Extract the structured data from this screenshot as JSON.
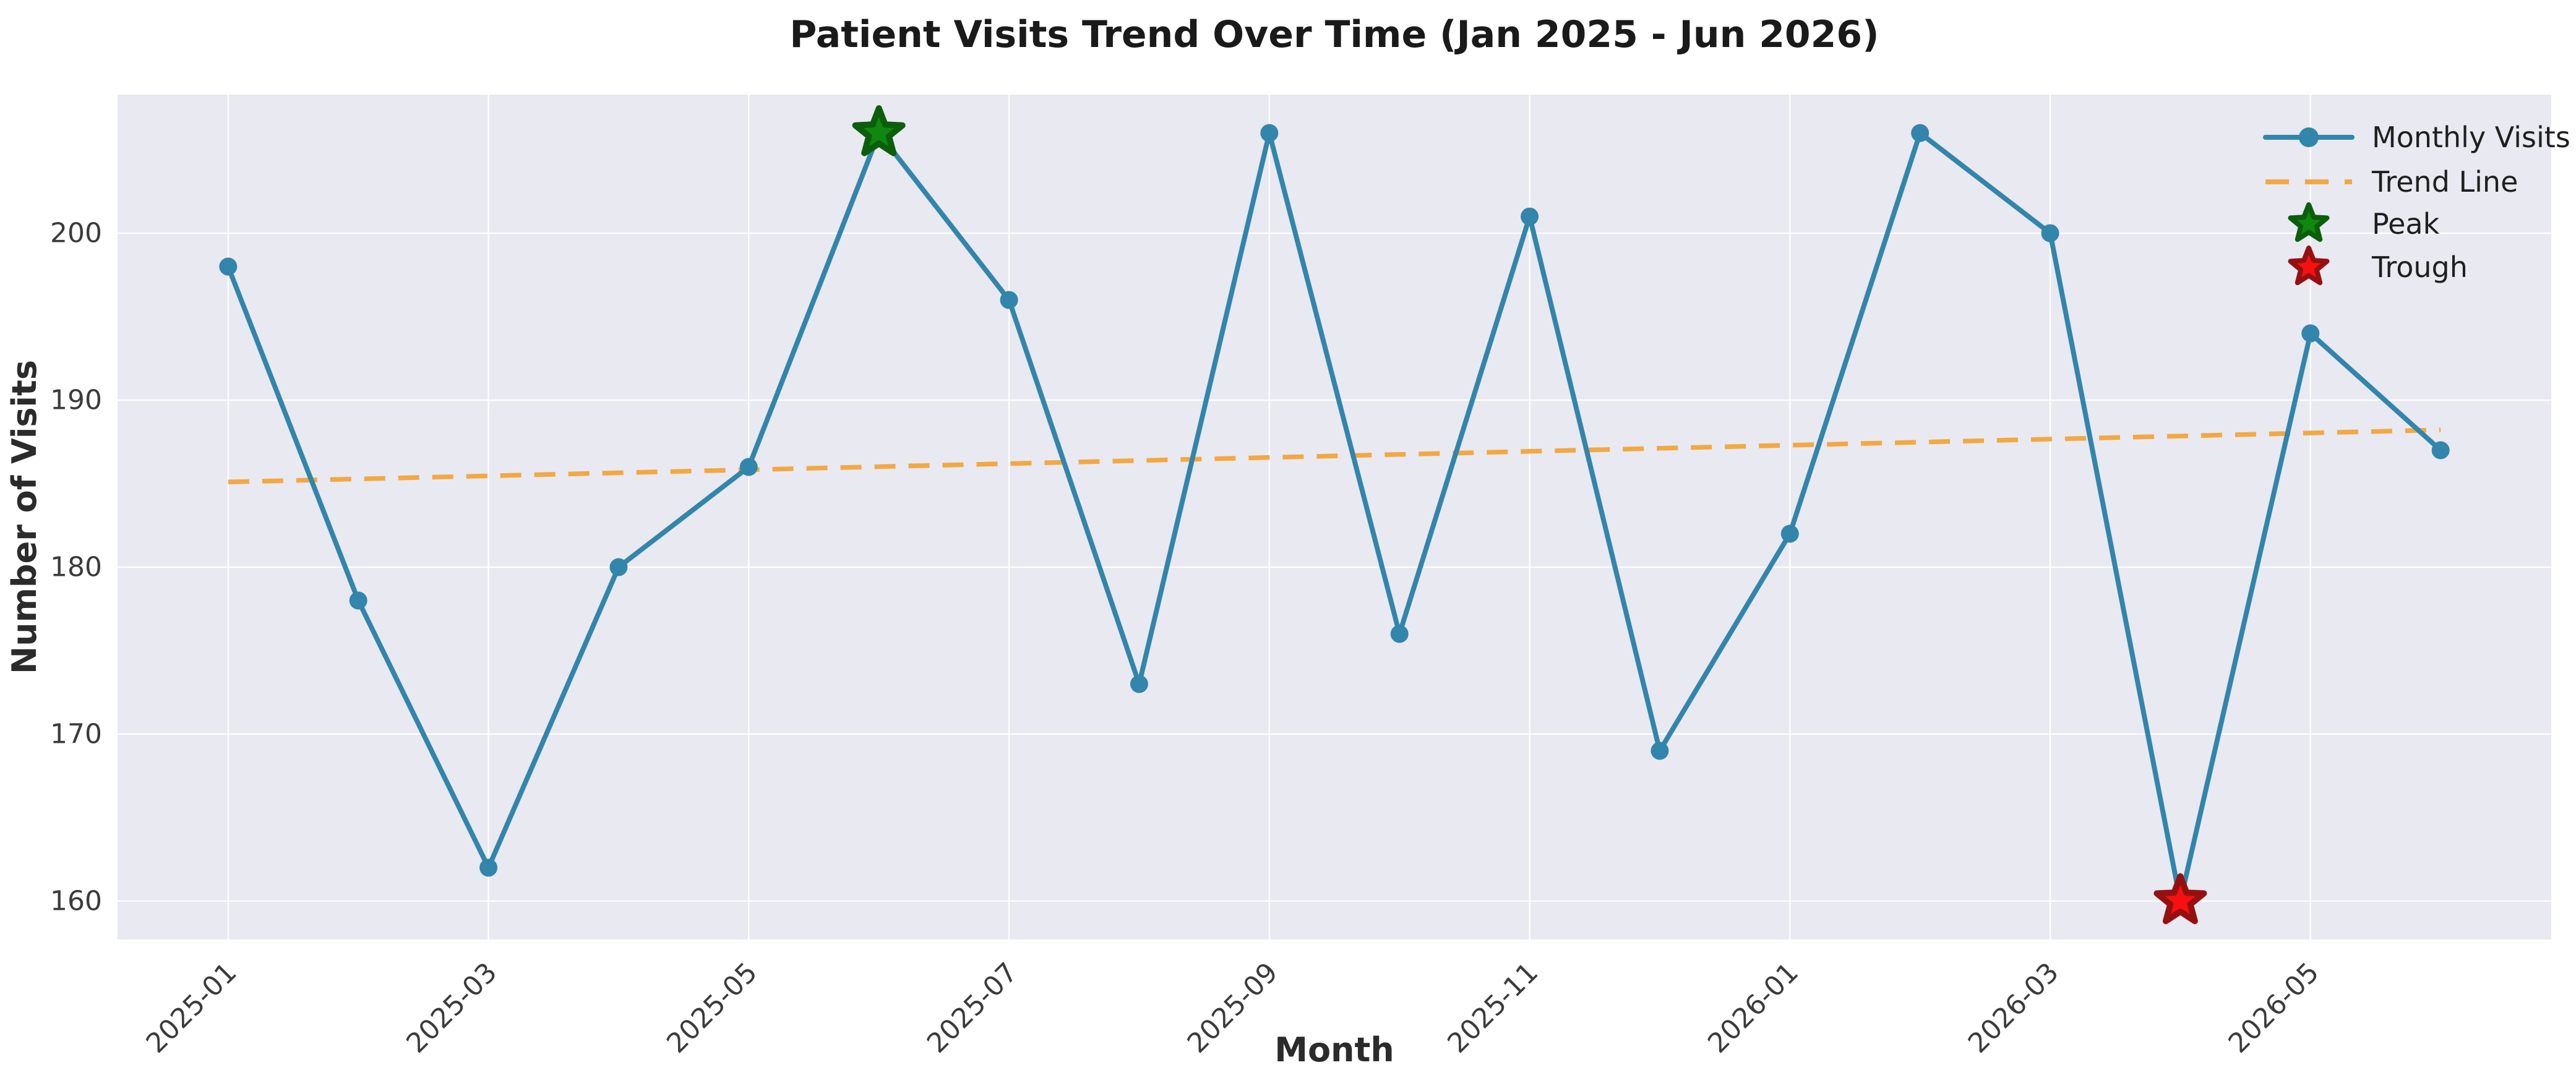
{
  "title": "Patient Visits Trend Over Time (Jan 2025 - Jun 2026)",
  "chart_data": {
    "type": "line",
    "title": "Patient Visits Trend Over Time (Jan 2025 - Jun 2026)",
    "xlabel": "Month",
    "ylabel": "Number of Visits",
    "x": [
      "2025-01",
      "2025-02",
      "2025-03",
      "2025-04",
      "2025-05",
      "2025-06",
      "2025-07",
      "2025-08",
      "2025-09",
      "2025-10",
      "2025-11",
      "2025-12",
      "2026-01",
      "2026-02",
      "2026-03",
      "2026-04",
      "2026-05",
      "2026-06"
    ],
    "series": [
      {
        "name": "Monthly Visits",
        "values": [
          198,
          178,
          162,
          180,
          186,
          206,
          196,
          173,
          206,
          176,
          201,
          169,
          182,
          206,
          200,
          160,
          194,
          187
        ]
      }
    ],
    "trend_line": {
      "name": "Trend Line",
      "intercept": 185.1,
      "slope": 0.1835,
      "start_value": 185.1,
      "end_value": 188.2
    },
    "annotations": [
      {
        "type": "peak",
        "label": "Peak",
        "month": "2025-06",
        "index": 5,
        "value": 206
      },
      {
        "type": "trough",
        "label": "Trough",
        "month": "2026-04",
        "index": 15,
        "value": 160
      }
    ],
    "x_ticks": [
      "2025-01",
      "2025-03",
      "2025-05",
      "2025-07",
      "2025-09",
      "2025-11",
      "2026-01",
      "2026-03",
      "2026-05"
    ],
    "y_ticks": [
      160,
      170,
      180,
      190,
      200
    ],
    "xlim": [
      -0.85,
      17.85
    ],
    "ylim": [
      157.7,
      208.3
    ],
    "grid": true,
    "legend_position": "upper right"
  },
  "legend": {
    "items": [
      {
        "label": "Monthly Visits",
        "glyph": "line-with-marker"
      },
      {
        "label": "Trend Line",
        "glyph": "dashed-line"
      },
      {
        "label": "Peak",
        "glyph": "green-star"
      },
      {
        "label": "Trough",
        "glyph": "red-star"
      }
    ]
  },
  "colors": {
    "line": "#3285AB",
    "marker": "#3285AB",
    "trend": "#F2A843",
    "peak_fill": "#108810",
    "peak_edge": "#0B5E0B",
    "trough_fill": "#F81010",
    "trough_edge": "#951111",
    "axes_bg": "#E9E9F1",
    "grid": "#FFFFFF",
    "tick_text": "#3B3B3B",
    "title_text": "#1A1A1A"
  }
}
